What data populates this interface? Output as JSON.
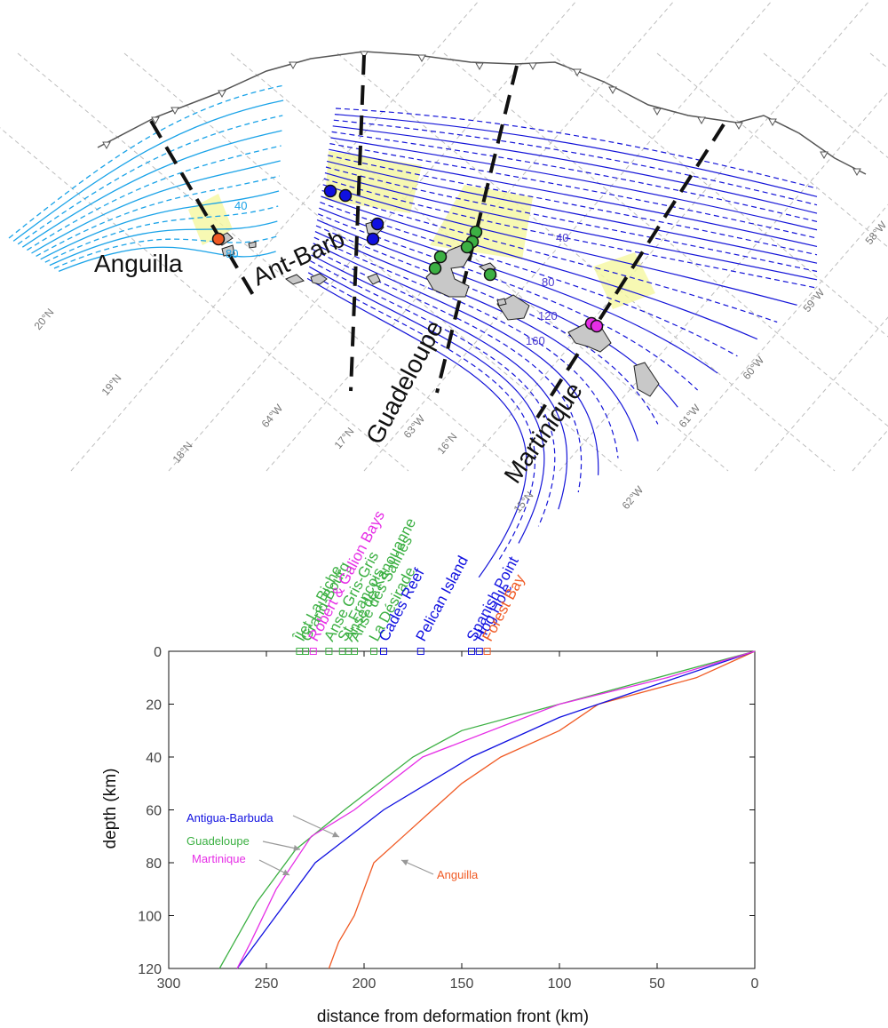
{
  "map": {
    "grid_labels": [
      {
        "text": "20°N",
        "angle": -50
      },
      {
        "text": "19°N",
        "angle": -50
      },
      {
        "text": "18°N",
        "angle": -50
      },
      {
        "text": "17°N",
        "angle": -50
      },
      {
        "text": "16°N",
        "angle": -50
      },
      {
        "text": "15°N",
        "angle": -50
      },
      {
        "text": "64°W",
        "angle": -50
      },
      {
        "text": "63°W",
        "angle": -50
      },
      {
        "text": "62°W",
        "angle": -50
      },
      {
        "text": "61°W",
        "angle": -50
      },
      {
        "text": "60°W",
        "angle": -50
      },
      {
        "text": "59°W",
        "angle": -50
      },
      {
        "text": "58°W",
        "angle": -50
      }
    ],
    "contour_labels": [
      {
        "text": "40",
        "color": "#1aa3e8"
      },
      {
        "text": "80",
        "color": "#1aa3e8"
      },
      {
        "text": "40",
        "color": "#4a3ad0"
      },
      {
        "text": "80",
        "color": "#4a3ad0"
      },
      {
        "text": "120",
        "color": "#4a3ad0"
      },
      {
        "text": "160",
        "color": "#4a3ad0"
      }
    ],
    "transect_labels": [
      {
        "text": "Anguilla",
        "angle": 0
      },
      {
        "text": "Ant-Barb",
        "angle": -25
      },
      {
        "text": "Guadeloupe",
        "angle": -62
      },
      {
        "text": "Martinique",
        "angle": -55
      }
    ],
    "colors": {
      "anguilla": "#f05a24",
      "antigua_barbuda": "#1010e0",
      "guadeloupe": "#3cb043",
      "martinique": "#e62ee6",
      "trench": "#555555",
      "contour_shallow": "#1aa3e8",
      "contour_deep": "#1414d8",
      "highlight": "#f5f7a0",
      "island": "#c8c8c8"
    }
  },
  "site_labels": [
    {
      "text": "Îlet La Biche",
      "color": "#3cb043"
    },
    {
      "text": "Grand-Bourg",
      "color": "#3cb043"
    },
    {
      "text": "Robert & Galion Bays",
      "color": "#e62ee6"
    },
    {
      "text": "Anse Gris-Gris",
      "color": "#3cb043"
    },
    {
      "text": "St. François",
      "color": "#3cb043"
    },
    {
      "text": "Anse de Kanouanne",
      "color": "#3cb043"
    },
    {
      "text": "Anse des Salines",
      "color": "#3cb043"
    },
    {
      "text": "La Désirade",
      "color": "#3cb043"
    },
    {
      "text": "Cades Reef",
      "color": "#1010e0"
    },
    {
      "text": "Pelican Island",
      "color": "#1010e0"
    },
    {
      "text": "Spanish Point",
      "color": "#1010e0"
    },
    {
      "text": "Hog Hole",
      "color": "#1010e0"
    },
    {
      "text": "Forest Bay",
      "color": "#f05a24"
    }
  ],
  "chart_data": {
    "type": "line",
    "xlabel": "distance from deformation front (km)",
    "ylabel": "depth (km)",
    "xlim": [
      300,
      0
    ],
    "ylim": [
      120,
      0
    ],
    "x_reversed": true,
    "y_reversed": true,
    "xticks": [
      300,
      250,
      200,
      150,
      100,
      50,
      0
    ],
    "yticks": [
      0,
      20,
      40,
      60,
      80,
      100,
      120
    ],
    "series": [
      {
        "name": "Anguilla",
        "color": "#f05a24",
        "x": [
          0,
          30,
          80,
          100,
          130,
          150,
          165,
          180,
          195,
          205,
          213,
          218
        ],
        "y": [
          0,
          10,
          20,
          30,
          40,
          50,
          60,
          70,
          80,
          100,
          110,
          120
        ]
      },
      {
        "name": "Antigua-Barbuda",
        "color": "#1010e0",
        "x": [
          0,
          40,
          100,
          145,
          190,
          225,
          245,
          265
        ],
        "y": [
          0,
          10,
          25,
          40,
          60,
          80,
          100,
          120
        ]
      },
      {
        "name": "Guadeloupe",
        "color": "#3cb043",
        "x": [
          0,
          50,
          100,
          150,
          175,
          210,
          235,
          245,
          255,
          274
        ],
        "y": [
          0,
          10,
          20,
          30,
          40,
          60,
          75,
          85,
          95,
          120
        ]
      },
      {
        "name": "Martinique",
        "color": "#e62ee6",
        "x": [
          0,
          45,
          100,
          170,
          205,
          227,
          245,
          258,
          265
        ],
        "y": [
          0,
          10,
          20,
          40,
          60,
          70,
          90,
          110,
          120
        ]
      }
    ],
    "site_markers": [
      {
        "x": 233,
        "color": "#3cb043"
      },
      {
        "x": 230,
        "color": "#3cb043"
      },
      {
        "x": 226,
        "color": "#e62ee6"
      },
      {
        "x": 218,
        "color": "#3cb043"
      },
      {
        "x": 211,
        "color": "#3cb043"
      },
      {
        "x": 208,
        "color": "#3cb043"
      },
      {
        "x": 205,
        "color": "#3cb043"
      },
      {
        "x": 195,
        "color": "#3cb043"
      },
      {
        "x": 190,
        "color": "#1010e0"
      },
      {
        "x": 171,
        "color": "#1010e0"
      },
      {
        "x": 145,
        "color": "#1010e0"
      },
      {
        "x": 141,
        "color": "#1010e0"
      },
      {
        "x": 137,
        "color": "#f05a24"
      }
    ]
  }
}
